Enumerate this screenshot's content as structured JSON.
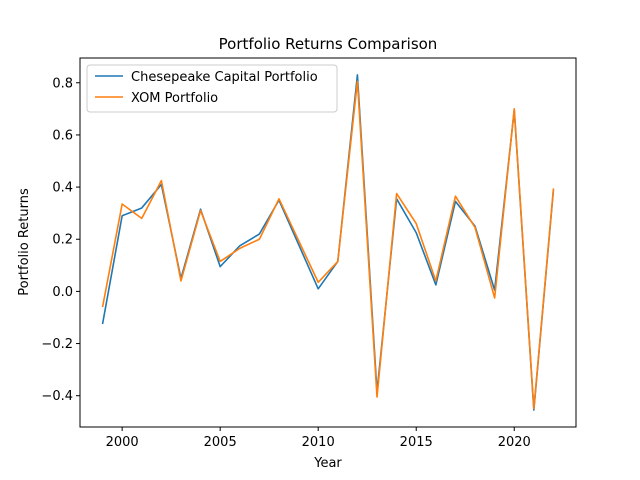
{
  "chart_data": {
    "type": "line",
    "title": "Portfolio Returns Comparison",
    "xlabel": "Year",
    "ylabel": "Portfolio Returns",
    "xlim": [
      1997.85,
      2023.15
    ],
    "ylim": [
      -0.52,
      0.895
    ],
    "xticks": [
      2000,
      2005,
      2010,
      2015,
      2020
    ],
    "yticks": [
      -0.4,
      -0.2,
      0.0,
      0.2,
      0.4,
      0.6,
      0.8
    ],
    "grid": false,
    "legend_position": "top-left",
    "x": [
      1999,
      2000,
      2001,
      2002,
      2003,
      2004,
      2005,
      2006,
      2007,
      2008,
      2009,
      2010,
      2011,
      2012,
      2013,
      2014,
      2015,
      2016,
      2017,
      2018,
      2019,
      2020,
      2021,
      2022
    ],
    "series": [
      {
        "name": "Chesepeake Capital Portfolio",
        "color": "#1f77b4",
        "values": [
          -0.125,
          0.29,
          0.32,
          0.41,
          0.05,
          0.315,
          0.095,
          0.175,
          0.22,
          0.35,
          0.18,
          0.01,
          0.115,
          0.83,
          -0.385,
          0.355,
          0.225,
          0.025,
          0.345,
          0.25,
          0.005,
          0.695,
          -0.455,
          0.39
        ]
      },
      {
        "name": "XOM Portfolio",
        "color": "#ff7f0e",
        "values": [
          -0.06,
          0.335,
          0.28,
          0.425,
          0.04,
          0.31,
          0.115,
          0.165,
          0.2,
          0.355,
          0.195,
          0.035,
          0.115,
          0.805,
          -0.405,
          0.375,
          0.26,
          0.04,
          0.365,
          0.245,
          -0.025,
          0.7,
          -0.45,
          0.395
        ]
      }
    ]
  }
}
